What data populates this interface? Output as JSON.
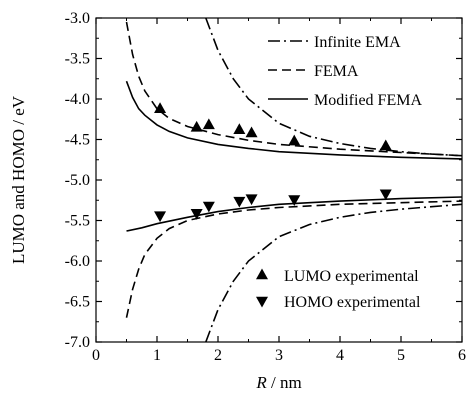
{
  "chart_data": {
    "type": "line",
    "xlabel_var": "R",
    "xlabel_unit": " / nm",
    "ylabel": "LUMO and HOMO / eV",
    "xlim": [
      0,
      6
    ],
    "ylim": [
      -7.0,
      -3.0
    ],
    "xticks": [
      "0",
      "1",
      "2",
      "3",
      "4",
      "5",
      "6"
    ],
    "yticks": [
      "-3.0",
      "-3.5",
      "-4.0",
      "-4.5",
      "-5.0",
      "-5.5",
      "-6.0",
      "-6.5",
      "-7.0"
    ],
    "grid": false,
    "legend_top": [
      {
        "label": "Infinite EMA",
        "style": "dashdot"
      },
      {
        "label": "FEMA",
        "style": "dashed"
      },
      {
        "label": "Modified FEMA",
        "style": "solid"
      }
    ],
    "legend_bottom": [
      {
        "label": "LUMO experimental",
        "marker": "triangle-up"
      },
      {
        "label": "HOMO experimental",
        "marker": "triangle-down"
      }
    ],
    "series": [
      {
        "label_ref": "Infinite EMA",
        "band": "LUMO",
        "style": "dashdot",
        "x": [
          1.8,
          2.0,
          2.25,
          2.5,
          3.0,
          3.5,
          4.0,
          4.5,
          5.0,
          5.5,
          6.0
        ],
        "y": [
          -3.0,
          -3.4,
          -3.75,
          -4.0,
          -4.3,
          -4.46,
          -4.55,
          -4.61,
          -4.65,
          -4.68,
          -4.7
        ]
      },
      {
        "label_ref": "Infinite EMA",
        "band": "HOMO",
        "style": "dashdot",
        "x": [
          1.8,
          2.0,
          2.25,
          2.5,
          3.0,
          3.5,
          4.0,
          4.5,
          5.0,
          5.5,
          6.0
        ],
        "y": [
          -7.0,
          -6.6,
          -6.25,
          -6.0,
          -5.7,
          -5.55,
          -5.46,
          -5.4,
          -5.36,
          -5.33,
          -5.3
        ]
      },
      {
        "label_ref": "FEMA",
        "band": "LUMO",
        "style": "dashed",
        "x": [
          0.5,
          0.6,
          0.7,
          0.8,
          1.0,
          1.2,
          1.5,
          2.0,
          2.5,
          3.0,
          4.0,
          5.0,
          6.0
        ],
        "y": [
          -3.05,
          -3.45,
          -3.72,
          -3.9,
          -4.12,
          -4.24,
          -4.34,
          -4.44,
          -4.51,
          -4.56,
          -4.62,
          -4.66,
          -4.7
        ]
      },
      {
        "label_ref": "FEMA",
        "band": "HOMO",
        "style": "dashed",
        "x": [
          0.5,
          0.6,
          0.7,
          0.8,
          1.0,
          1.2,
          1.5,
          2.0,
          2.5,
          3.0,
          4.0,
          5.0,
          6.0
        ],
        "y": [
          -6.7,
          -6.35,
          -6.1,
          -5.92,
          -5.72,
          -5.6,
          -5.5,
          -5.42,
          -5.37,
          -5.34,
          -5.3,
          -5.28,
          -5.26
        ]
      },
      {
        "label_ref": "Modified FEMA",
        "band": "LUMO",
        "style": "solid",
        "x": [
          0.5,
          0.6,
          0.7,
          0.8,
          1.0,
          1.2,
          1.5,
          2.0,
          2.5,
          3.0,
          4.0,
          5.0,
          6.0
        ],
        "y": [
          -3.78,
          -3.98,
          -4.12,
          -4.2,
          -4.32,
          -4.4,
          -4.48,
          -4.56,
          -4.61,
          -4.65,
          -4.69,
          -4.72,
          -4.74
        ]
      },
      {
        "label_ref": "Modified FEMA",
        "band": "HOMO",
        "style": "solid",
        "x": [
          0.5,
          0.75,
          1.0,
          1.5,
          2.0,
          2.5,
          3.0,
          4.0,
          5.0,
          6.0
        ],
        "y": [
          -5.63,
          -5.59,
          -5.54,
          -5.46,
          -5.39,
          -5.34,
          -5.3,
          -5.26,
          -5.23,
          -5.21
        ]
      }
    ],
    "points_lumo": {
      "x": [
        1.05,
        1.65,
        1.85,
        2.35,
        2.55,
        3.25,
        4.75
      ],
      "y": [
        -4.12,
        -4.35,
        -4.32,
        -4.38,
        -4.42,
        -4.52,
        -4.58
      ]
    },
    "points_homo": {
      "x": [
        1.05,
        1.65,
        1.85,
        2.35,
        2.55,
        3.25,
        4.75
      ],
      "y": [
        -5.44,
        -5.41,
        -5.32,
        -5.26,
        -5.23,
        -5.24,
        -5.17
      ]
    }
  }
}
